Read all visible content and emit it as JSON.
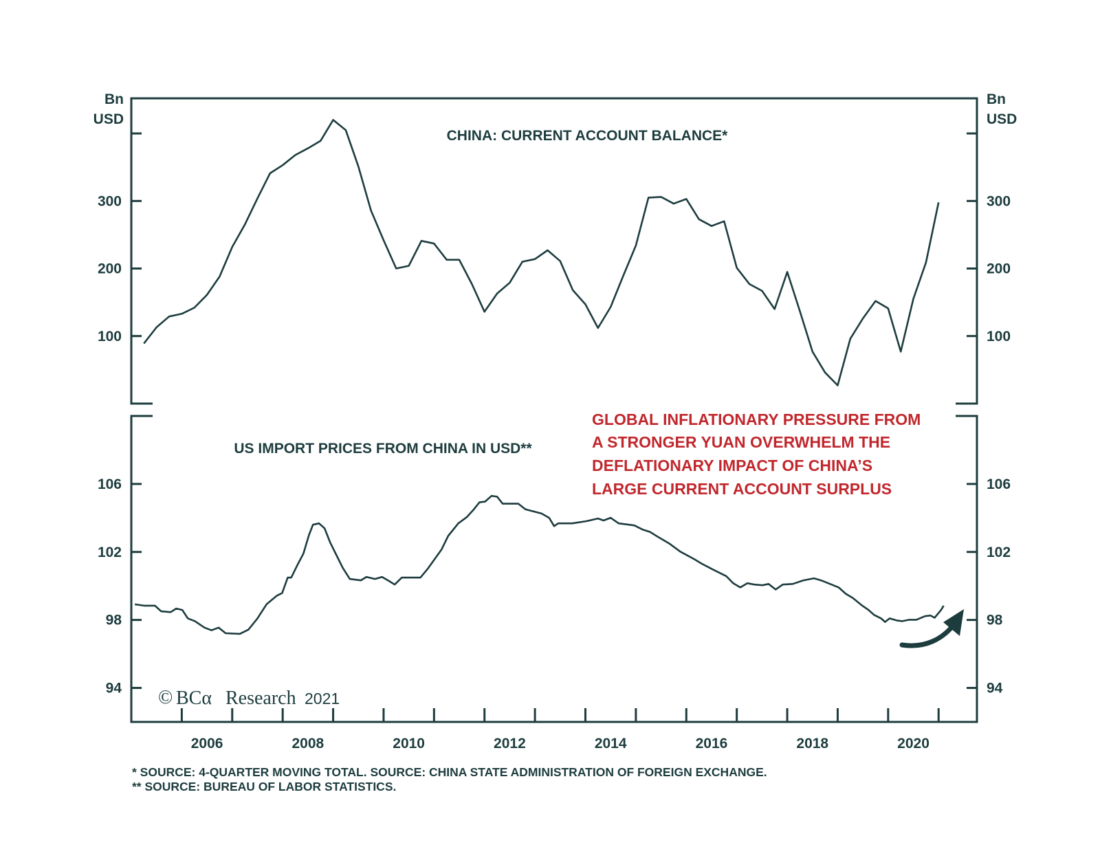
{
  "chart_data": [
    {
      "type": "line",
      "title": "CHINA: CURRENT ACCOUNT BALANCE*",
      "ylabel": "Bn USD",
      "ylim": [
        0,
        452
      ],
      "xlim": [
        2005.0,
        2021.76
      ],
      "yticks": [
        100,
        200,
        300,
        400
      ],
      "ytick_labels": [
        "100",
        "200",
        "300",
        ""
      ],
      "grid": false,
      "x": [
        2005.25,
        2005.5,
        2005.75,
        2006.0,
        2006.25,
        2006.5,
        2006.75,
        2007.0,
        2007.25,
        2007.5,
        2007.75,
        2008.0,
        2008.25,
        2008.5,
        2008.75,
        2009.0,
        2009.25,
        2009.5,
        2009.75,
        2010.0,
        2010.25,
        2010.5,
        2010.75,
        2011.0,
        2011.25,
        2011.5,
        2011.75,
        2012.0,
        2012.25,
        2012.5,
        2012.75,
        2013.0,
        2013.25,
        2013.5,
        2013.75,
        2014.0,
        2014.25,
        2014.5,
        2014.75,
        2015.0,
        2015.25,
        2015.5,
        2015.75,
        2016.0,
        2016.25,
        2016.5,
        2016.75,
        2017.0,
        2017.25,
        2017.5,
        2017.75,
        2018.0,
        2018.25,
        2018.5,
        2018.75,
        2019.0,
        2019.25,
        2019.5,
        2019.75,
        2020.0,
        2020.25,
        2020.5,
        2020.75,
        2021.0
      ],
      "values": [
        89,
        113,
        129,
        133,
        142,
        161,
        188,
        232,
        265,
        304,
        341,
        353,
        368,
        378,
        389,
        420,
        405,
        351,
        286,
        242,
        200,
        204,
        241,
        237,
        213,
        213,
        177,
        136,
        163,
        179,
        210,
        214,
        227,
        211,
        168,
        147,
        112,
        143,
        189,
        234,
        305,
        306,
        296,
        303,
        273,
        263,
        270,
        201,
        177,
        167,
        140,
        195,
        137,
        77,
        46,
        27,
        96,
        126,
        152,
        141,
        77,
        155,
        209,
        298
      ]
    },
    {
      "type": "line",
      "title": "US IMPORT PRICES FROM CHINA IN USD**",
      "ylim": [
        92,
        110
      ],
      "xlim": [
        2005.0,
        2021.76
      ],
      "yticks": [
        94,
        98,
        102,
        106
      ],
      "ytick_labels": [
        "94",
        "98",
        "102",
        "106"
      ],
      "grid": false,
      "x": [
        2005.07,
        2005.25,
        2005.47,
        2005.59,
        2005.78,
        2005.89,
        2006.01,
        2006.12,
        2006.26,
        2006.45,
        2006.59,
        2006.73,
        2006.87,
        2007.15,
        2007.32,
        2007.5,
        2007.68,
        2007.88,
        2007.99,
        2008.1,
        2008.17,
        2008.3,
        2008.41,
        2008.52,
        2008.6,
        2008.72,
        2008.83,
        2008.94,
        2009.08,
        2009.19,
        2009.33,
        2009.55,
        2009.66,
        2009.83,
        2009.97,
        2010.11,
        2010.22,
        2010.36,
        2010.59,
        2010.73,
        2010.87,
        2011.01,
        2011.15,
        2011.28,
        2011.48,
        2011.65,
        2011.79,
        2011.9,
        2012.01,
        2012.14,
        2012.25,
        2012.36,
        2012.67,
        2012.81,
        2013.13,
        2013.28,
        2013.38,
        2013.46,
        2013.74,
        2014.02,
        2014.25,
        2014.36,
        2014.5,
        2014.66,
        2014.97,
        2015.14,
        2015.28,
        2015.46,
        2015.67,
        2015.88,
        2016.16,
        2016.3,
        2016.51,
        2016.68,
        2016.79,
        2016.93,
        2017.07,
        2017.21,
        2017.35,
        2017.51,
        2017.63,
        2017.77,
        2017.91,
        2018.11,
        2018.32,
        2018.53,
        2018.67,
        2018.88,
        2019.02,
        2019.16,
        2019.3,
        2019.47,
        2019.61,
        2019.72,
        2019.86,
        2019.94,
        2020.03,
        2020.17,
        2020.28,
        2020.42,
        2020.56,
        2020.73,
        2020.84,
        2020.92,
        2021.05,
        2021.1
      ],
      "values": [
        98.92,
        98.84,
        98.84,
        98.51,
        98.46,
        98.67,
        98.59,
        98.09,
        97.93,
        97.55,
        97.39,
        97.55,
        97.22,
        97.18,
        97.43,
        98.09,
        98.92,
        99.42,
        99.58,
        100.49,
        100.49,
        101.28,
        101.9,
        102.98,
        103.6,
        103.68,
        103.39,
        102.56,
        101.73,
        101.07,
        100.41,
        100.33,
        100.53,
        100.41,
        100.53,
        100.29,
        100.08,
        100.49,
        100.49,
        100.49,
        100.99,
        101.57,
        102.15,
        102.94,
        103.68,
        104.05,
        104.51,
        104.92,
        104.96,
        105.3,
        105.25,
        104.84,
        104.84,
        104.51,
        104.26,
        104.01,
        103.52,
        103.68,
        103.68,
        103.81,
        103.97,
        103.85,
        104.01,
        103.68,
        103.56,
        103.31,
        103.18,
        102.85,
        102.48,
        102.02,
        101.57,
        101.32,
        100.99,
        100.74,
        100.58,
        100.16,
        99.91,
        100.16,
        100.08,
        100.04,
        100.12,
        99.79,
        100.08,
        100.12,
        100.33,
        100.45,
        100.33,
        100.08,
        99.91,
        99.54,
        99.29,
        98.88,
        98.59,
        98.3,
        98.09,
        97.88,
        98.09,
        97.97,
        97.93,
        98.01,
        98.01,
        98.22,
        98.26,
        98.13,
        98.59,
        98.84
      ]
    }
  ],
  "x_axis": {
    "tick_years": [
      2006,
      2007,
      2008,
      2009,
      2010,
      2011,
      2012,
      2013,
      2014,
      2015,
      2016,
      2017,
      2018,
      2019,
      2020,
      2021
    ],
    "labels": [
      "2006",
      "2008",
      "2010",
      "2012",
      "2014",
      "2016",
      "2018",
      "2020"
    ]
  },
  "unit_label": {
    "line1": "Bn",
    "line2": "USD"
  },
  "annotation": {
    "lines": [
      "GLOBAL INFLATIONARY PRESSURE FROM",
      "A STRONGER YUAN OVERWHELM THE",
      "DEFLATIONARY IMPACT OF CHINA’S",
      "LARGE CURRENT ACCOUNT SURPLUS"
    ],
    "color": "#c1272d"
  },
  "copyright": {
    "symbol": "©",
    "brand": "BCα",
    "name": "Research",
    "year": "2021"
  },
  "footnotes": [
    "*  SOURCE: 4-QUARTER MOVING TOTAL. SOURCE: CHINA STATE ADMINISTRATION OF FOREIGN EXCHANGE.",
    "** SOURCE: BUREAU OF LABOR STATISTICS."
  ],
  "colors": {
    "line": "#1d3c3e",
    "annotation": "#c1272d"
  },
  "icons": {
    "arrow": "curved-up-arrow-icon"
  }
}
